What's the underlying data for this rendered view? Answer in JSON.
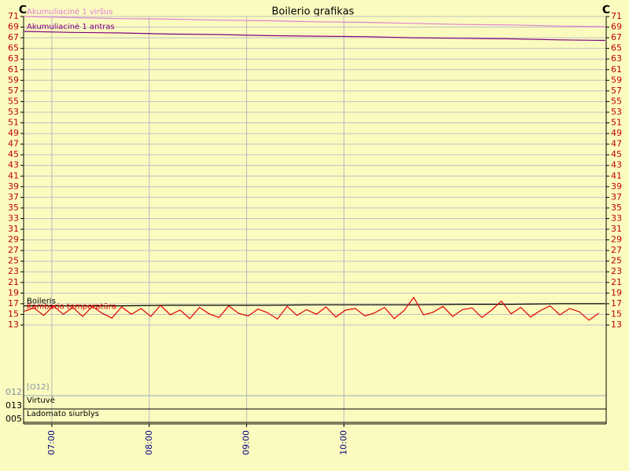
{
  "chart_data": {
    "type": "line",
    "title": "Boilerio grafikas",
    "y_unit": "C",
    "xlim": [
      402.6,
      761.6
    ],
    "xticks": [
      {
        "value": 420,
        "label": "07:00"
      },
      {
        "value": 480,
        "label": "08:00"
      },
      {
        "value": 540,
        "label": "09:00"
      },
      {
        "value": 600,
        "label": "10:00"
      }
    ],
    "ylim": [
      13,
      71
    ],
    "yticks": [
      13,
      15,
      17,
      19,
      21,
      23,
      25,
      27,
      29,
      31,
      33,
      35,
      37,
      39,
      41,
      43,
      45,
      47,
      49,
      51,
      53,
      55,
      57,
      59,
      61,
      63,
      65,
      67,
      69,
      71
    ],
    "grid": true,
    "series": [
      {
        "name": "Akumuliacinė 1 viršus",
        "color": "#e080d8",
        "x": [
          403,
          433,
          463,
          493,
          523,
          553,
          583,
          613,
          643,
          673,
          703,
          733,
          761
        ],
        "values": [
          71.0,
          70.8,
          70.6,
          70.5,
          70.3,
          70.2,
          70.0,
          69.9,
          69.7,
          69.5,
          69.4,
          69.2,
          69.1
        ]
      },
      {
        "name": "Akumuliacinė 1 antras",
        "color": "#800080",
        "x": [
          403,
          433,
          463,
          493,
          523,
          553,
          583,
          613,
          643,
          673,
          703,
          733,
          761
        ],
        "values": [
          68.2,
          68.0,
          67.9,
          67.7,
          67.6,
          67.4,
          67.3,
          67.2,
          67.0,
          66.9,
          66.8,
          66.6,
          66.5
        ]
      },
      {
        "name": "Boileris",
        "color": "#000000",
        "x": [
          403,
          433,
          463,
          493,
          523,
          553,
          583,
          613,
          643,
          673,
          703,
          733,
          761
        ],
        "values": [
          16.6,
          16.6,
          16.6,
          16.7,
          16.7,
          16.7,
          16.8,
          16.8,
          16.8,
          16.9,
          16.9,
          17.0,
          17.0
        ]
      },
      {
        "name": "Kambario temperatūra",
        "color": "#e00000",
        "x": [
          403,
          409,
          415,
          421,
          427,
          433,
          439,
          445,
          451,
          457,
          463,
          469,
          475,
          481,
          487,
          493,
          499,
          505,
          511,
          517,
          523,
          529,
          535,
          541,
          547,
          553,
          559,
          565,
          571,
          577,
          583,
          589,
          595,
          601,
          607,
          613,
          619,
          625,
          631,
          637,
          643,
          649,
          655,
          661,
          667,
          673,
          679,
          685,
          691,
          697,
          703,
          709,
          715,
          721,
          727,
          733,
          739,
          745,
          751,
          757
        ],
        "values": [
          15.6,
          16.2,
          14.8,
          16.6,
          15.0,
          16.3,
          14.6,
          16.5,
          15.2,
          14.3,
          16.4,
          15.0,
          16.1,
          14.6,
          16.7,
          14.9,
          15.8,
          14.2,
          16.3,
          15.1,
          14.4,
          16.6,
          15.2,
          14.7,
          16.0,
          15.3,
          14.1,
          16.5,
          14.8,
          15.9,
          15.0,
          16.4,
          14.5,
          15.8,
          16.1,
          14.7,
          15.3,
          16.3,
          14.2,
          15.7,
          18.2,
          14.9,
          15.4,
          16.5,
          14.6,
          15.9,
          16.2,
          14.4,
          15.8,
          17.5,
          15.1,
          16.3,
          14.5,
          15.7,
          16.6,
          14.9,
          16.1,
          15.5,
          13.9,
          15.2
        ]
      }
    ],
    "lanes": [
      {
        "axis_label": "012",
        "name": "[O12]",
        "color": "#7f8fa0"
      },
      {
        "axis_label": "013",
        "name": "Virtuvė",
        "color": "#000000"
      },
      {
        "axis_label": "005",
        "name": "Ladomato siurblys",
        "color": "#000000"
      }
    ]
  }
}
